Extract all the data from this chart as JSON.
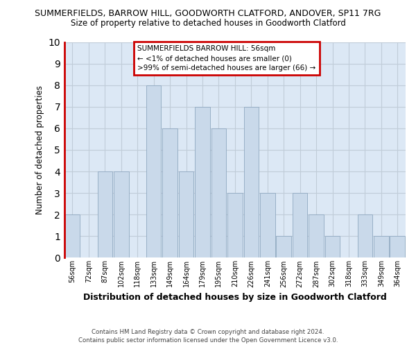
{
  "title_line1": "SUMMERFIELDS, BARROW HILL, GOODWORTH CLATFORD, ANDOVER, SP11 7RG",
  "title_line2": "Size of property relative to detached houses in Goodworth Clatford",
  "xlabel": "Distribution of detached houses by size in Goodworth Clatford",
  "ylabel": "Number of detached properties",
  "footnote": "Contains HM Land Registry data © Crown copyright and database right 2024.\nContains public sector information licensed under the Open Government Licence v3.0.",
  "categories": [
    "56sqm",
    "72sqm",
    "87sqm",
    "102sqm",
    "118sqm",
    "133sqm",
    "149sqm",
    "164sqm",
    "179sqm",
    "195sqm",
    "210sqm",
    "226sqm",
    "241sqm",
    "256sqm",
    "272sqm",
    "287sqm",
    "302sqm",
    "318sqm",
    "333sqm",
    "349sqm",
    "364sqm"
  ],
  "values": [
    2,
    0,
    4,
    4,
    0,
    8,
    6,
    4,
    7,
    6,
    3,
    7,
    3,
    1,
    3,
    2,
    1,
    0,
    2,
    1,
    1
  ],
  "bar_color": "#c9d9ea",
  "annotation_box_color": "#cc0000",
  "annotation_text": "SUMMERFIELDS BARROW HILL: 56sqm\n← <1% of detached houses are smaller (0)\n>99% of semi-detached houses are larger (66) →",
  "ylim": [
    0,
    10
  ],
  "yticks": [
    0,
    1,
    2,
    3,
    4,
    5,
    6,
    7,
    8,
    9,
    10
  ],
  "bar_edge_color": "#8fa8c0",
  "background_color": "#ffffff",
  "plot_bg_color": "#dce8f5",
  "red_line_color": "#cc0000",
  "grid_color": "#c0ccd8"
}
